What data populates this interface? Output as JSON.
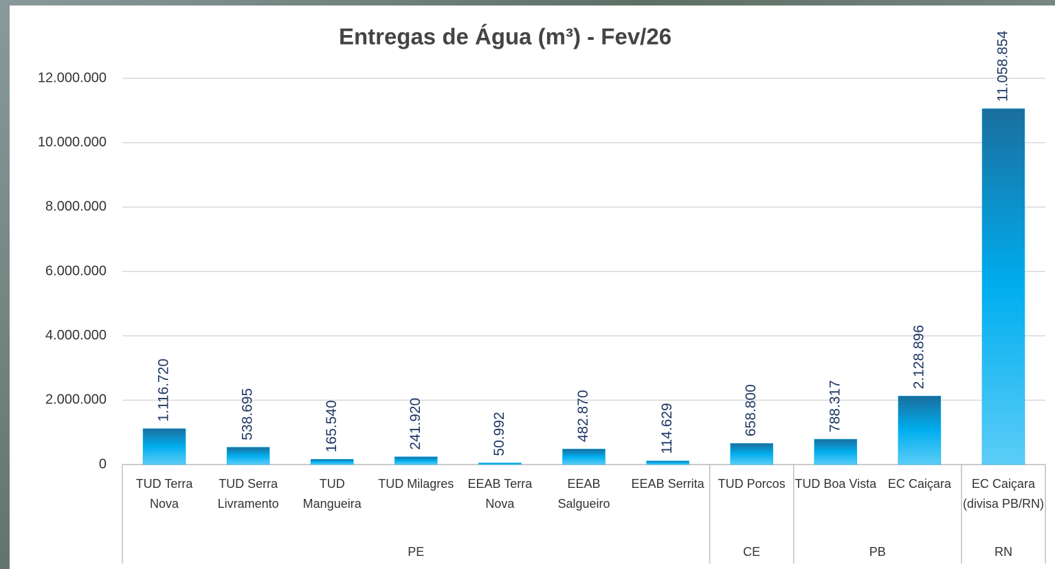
{
  "chart_data": {
    "type": "bar",
    "title": "Entregas de Água (m³) - Fev/26",
    "categories": [
      "TUD Terra Nova",
      "TUD Serra Livramento",
      "TUD Mangueira",
      "TUD Milagres",
      "EEAB Terra Nova",
      "EEAB Salgueiro",
      "EEAB Serrita",
      "TUD Porcos",
      "TUD Boa Vista",
      "EC Caiçara",
      "EC Caiçara (divisa PB/RN)"
    ],
    "groups": [
      {
        "label": "PE",
        "size": 7
      },
      {
        "label": "CE",
        "size": 1
      },
      {
        "label": "PB",
        "size": 2
      },
      {
        "label": "RN",
        "size": 1
      }
    ],
    "values": [
      1116720,
      538695,
      165540,
      241920,
      50992,
      482870,
      114629,
      658800,
      788317,
      2128896,
      11058854
    ],
    "value_labels": [
      "1.116.720",
      "538.695",
      "165.540",
      "241.920",
      "50.992",
      "482.870",
      "114.629",
      "658.800",
      "788.317",
      "2.128.896",
      "11.058.854"
    ],
    "color": "#00aeef",
    "ylim": [
      0,
      12000000
    ],
    "yticks": [
      0,
      {
        "value": 2000000,
        "label": "2.000.000"
      },
      {
        "value": 4000000,
        "label": "4.000.000"
      },
      {
        "value": 6000000,
        "label": "6.000.000"
      },
      {
        "value": 8000000,
        "label": "8.000.000"
      },
      {
        "value": 10000000,
        "label": "10.000.000"
      },
      {
        "value": 12000000,
        "label": "12.000.000"
      }
    ],
    "grid": true
  }
}
